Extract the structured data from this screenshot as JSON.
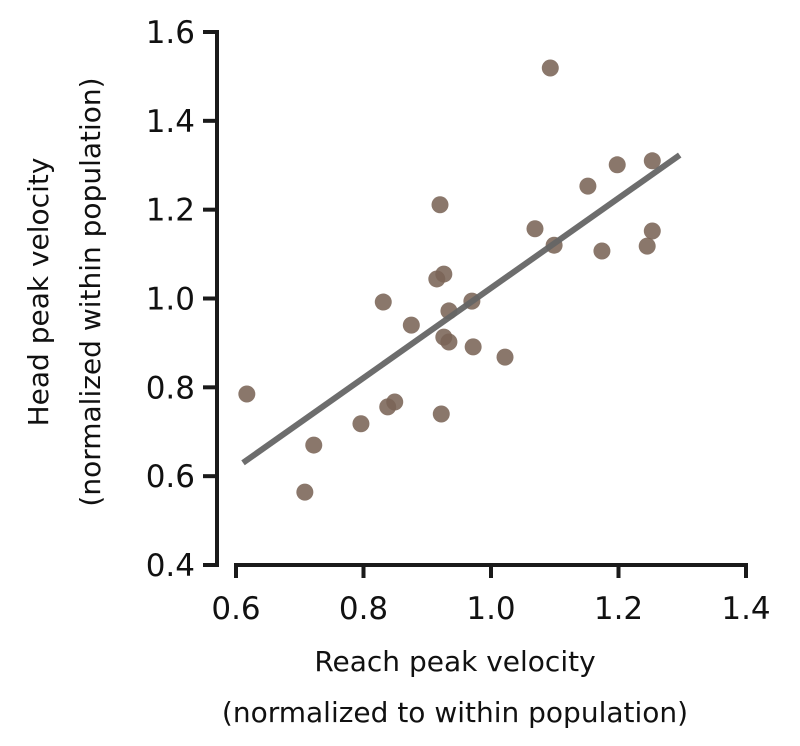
{
  "chart_data": {
    "type": "scatter",
    "title": "",
    "xlabel_lines": [
      "Reach peak velocity",
      "(normalized to within population)"
    ],
    "ylabel_lines": [
      "Head peak velocity",
      "(normalized within population)"
    ],
    "xlim": [
      0.6,
      1.4
    ],
    "ylim": [
      0.4,
      1.6
    ],
    "xticks": [
      0.6,
      0.8,
      1.0,
      1.2,
      1.4
    ],
    "yticks": [
      0.4,
      0.6,
      0.8,
      1.0,
      1.2,
      1.4,
      1.6
    ],
    "xtick_labels": [
      "0.6",
      "0.8",
      "1.0",
      "1.2",
      "1.4"
    ],
    "ytick_labels": [
      "0.4",
      "0.6",
      "0.8",
      "1.0",
      "1.2",
      "1.4",
      "1.6"
    ],
    "grid": false,
    "legend": null,
    "point_color": "#7a6456",
    "line_color": "#656565",
    "axis_color": "#1a1a1a",
    "points": [
      {
        "x": 0.617,
        "y": 0.785
      },
      {
        "x": 0.708,
        "y": 0.564
      },
      {
        "x": 0.722,
        "y": 0.67
      },
      {
        "x": 0.796,
        "y": 0.718
      },
      {
        "x": 0.838,
        "y": 0.756
      },
      {
        "x": 0.849,
        "y": 0.767
      },
      {
        "x": 0.922,
        "y": 0.74
      },
      {
        "x": 0.831,
        "y": 0.992
      },
      {
        "x": 0.875,
        "y": 0.94
      },
      {
        "x": 0.92,
        "y": 1.211
      },
      {
        "x": 0.915,
        "y": 1.044
      },
      {
        "x": 0.926,
        "y": 1.055
      },
      {
        "x": 0.934,
        "y": 0.972
      },
      {
        "x": 0.926,
        "y": 0.913
      },
      {
        "x": 0.934,
        "y": 0.902
      },
      {
        "x": 0.97,
        "y": 0.994
      },
      {
        "x": 0.972,
        "y": 0.891
      },
      {
        "x": 1.022,
        "y": 0.868
      },
      {
        "x": 1.069,
        "y": 1.157
      },
      {
        "x": 1.099,
        "y": 1.12
      },
      {
        "x": 1.093,
        "y": 1.519
      },
      {
        "x": 1.152,
        "y": 1.253
      },
      {
        "x": 1.174,
        "y": 1.107
      },
      {
        "x": 1.198,
        "y": 1.301
      },
      {
        "x": 1.245,
        "y": 1.118
      },
      {
        "x": 1.253,
        "y": 1.31
      },
      {
        "x": 1.253,
        "y": 1.152
      }
    ],
    "regression_line": {
      "x": [
        0.611,
        1.296
      ],
      "y": [
        0.63,
        1.323
      ]
    }
  }
}
